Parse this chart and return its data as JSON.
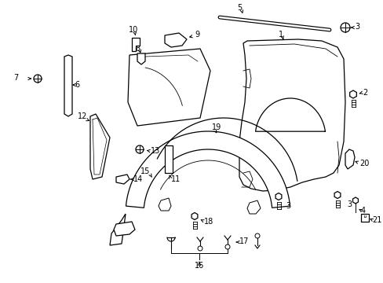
{
  "background_color": "#ffffff",
  "line_color": "#000000",
  "fig_width": 4.89,
  "fig_height": 3.6,
  "dpi": 100,
  "coord_system": "pixels_489x360"
}
